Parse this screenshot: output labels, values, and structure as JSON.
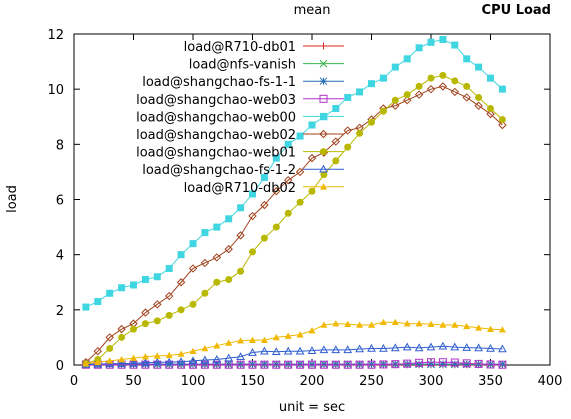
{
  "chart_data": {
    "type": "line",
    "title": "mean",
    "corner_title": "CPU Load",
    "xlabel": "unit = sec",
    "ylabel": "load",
    "xlim": [
      0,
      400
    ],
    "ylim": [
      0,
      12
    ],
    "xticks": [
      0,
      50,
      100,
      150,
      200,
      250,
      300,
      350,
      400
    ],
    "yticks": [
      0,
      2,
      4,
      6,
      8,
      10,
      12
    ],
    "grid": false,
    "legend_position": "top-left",
    "series": [
      {
        "name": "load@R710-db01",
        "color": "#d62a1e",
        "marker": "plus",
        "x": [
          10,
          20,
          30,
          40,
          50,
          60,
          70,
          80,
          90,
          100,
          110,
          120,
          130,
          140,
          150,
          160,
          170,
          180,
          190,
          200,
          210,
          220,
          230,
          240,
          250,
          260,
          270,
          280,
          290,
          300,
          310,
          320,
          330,
          340,
          350,
          360
        ],
        "values": [
          0.01,
          0.01,
          0.01,
          0.01,
          0.01,
          0.01,
          0.01,
          0.01,
          0.01,
          0.01,
          0.01,
          0.01,
          0.01,
          0.01,
          0.01,
          0.01,
          0.01,
          0.01,
          0.01,
          0.01,
          0.01,
          0.01,
          0.01,
          0.01,
          0.01,
          0.01,
          0.01,
          0.01,
          0.01,
          0.01,
          0.01,
          0.01,
          0.01,
          0.01,
          0.01,
          0.01
        ]
      },
      {
        "name": "load@nfs-vanish",
        "color": "#3cb44b",
        "marker": "cross",
        "x": [
          10,
          20,
          30,
          40,
          50,
          60,
          70,
          80,
          90,
          100,
          110,
          120,
          130,
          140,
          150,
          160,
          170,
          180,
          190,
          200,
          210,
          220,
          230,
          240,
          250,
          260,
          270,
          280,
          290,
          300,
          310,
          320,
          330,
          340,
          350,
          360
        ],
        "values": [
          0.02,
          0.02,
          0.02,
          0.02,
          0.02,
          0.02,
          0.02,
          0.02,
          0.02,
          0.02,
          0.02,
          0.02,
          0.02,
          0.02,
          0.02,
          0.02,
          0.02,
          0.02,
          0.02,
          0.02,
          0.02,
          0.02,
          0.02,
          0.02,
          0.02,
          0.02,
          0.02,
          0.02,
          0.02,
          0.02,
          0.02,
          0.02,
          0.02,
          0.02,
          0.02,
          0.02
        ]
      },
      {
        "name": "load@shangchao-fs-1-1",
        "color": "#2a6fb7",
        "marker": "star",
        "x": [
          10,
          20,
          30,
          40,
          50,
          60,
          70,
          80,
          90,
          100,
          110,
          120,
          130,
          140,
          150,
          160,
          170,
          180,
          190,
          200,
          210,
          220,
          230,
          240,
          250,
          260,
          270,
          280,
          290,
          300,
          310,
          320,
          330,
          340,
          350,
          360
        ],
        "values": [
          0.03,
          0.03,
          0.03,
          0.03,
          0.03,
          0.03,
          0.03,
          0.03,
          0.03,
          0.03,
          0.03,
          0.03,
          0.03,
          0.03,
          0.03,
          0.03,
          0.03,
          0.03,
          0.03,
          0.03,
          0.03,
          0.03,
          0.03,
          0.03,
          0.03,
          0.03,
          0.03,
          0.03,
          0.03,
          0.03,
          0.03,
          0.03,
          0.03,
          0.03,
          0.03,
          0.03
        ]
      },
      {
        "name": "load@shangchao-web03",
        "color": "#b030c8",
        "marker": "square",
        "x": [
          10,
          20,
          30,
          40,
          50,
          60,
          70,
          80,
          90,
          100,
          110,
          120,
          130,
          140,
          150,
          160,
          170,
          180,
          190,
          200,
          210,
          220,
          230,
          240,
          250,
          260,
          270,
          280,
          290,
          300,
          310,
          320,
          330,
          340,
          350,
          360
        ],
        "values": [
          0.01,
          0.01,
          0.01,
          0.01,
          0.01,
          0.01,
          0.01,
          0.01,
          0.01,
          0.01,
          0.01,
          0.01,
          0.01,
          0.01,
          0.01,
          0.01,
          0.01,
          0.01,
          0.01,
          0.01,
          0.01,
          0.01,
          0.01,
          0.01,
          0.01,
          0.02,
          0.03,
          0.05,
          0.08,
          0.1,
          0.1,
          0.09,
          0.06,
          0.04,
          0.02,
          0.01
        ]
      },
      {
        "name": "load@shangchao-web00",
        "color": "#3fd6e2",
        "marker": "filled-square",
        "x": [
          10,
          20,
          30,
          40,
          50,
          60,
          70,
          80,
          90,
          100,
          110,
          120,
          130,
          140,
          150,
          160,
          170,
          180,
          190,
          200,
          210,
          220,
          230,
          240,
          250,
          260,
          270,
          280,
          290,
          300,
          310,
          320,
          330,
          340,
          350,
          360
        ],
        "values": [
          2.1,
          2.3,
          2.6,
          2.8,
          2.9,
          3.1,
          3.2,
          3.5,
          4.0,
          4.4,
          4.8,
          5.0,
          5.3,
          5.7,
          6.2,
          6.8,
          7.5,
          8.0,
          8.3,
          8.7,
          9.0,
          9.3,
          9.7,
          9.9,
          10.2,
          10.4,
          10.8,
          11.1,
          11.5,
          11.7,
          11.8,
          11.6,
          11.1,
          10.8,
          10.4,
          10.0
        ]
      },
      {
        "name": "load@shangchao-web02",
        "color": "#a0401a",
        "marker": "open-diamond",
        "x": [
          10,
          20,
          30,
          40,
          50,
          60,
          70,
          80,
          90,
          100,
          110,
          120,
          130,
          140,
          150,
          160,
          170,
          180,
          190,
          200,
          210,
          220,
          230,
          240,
          250,
          260,
          270,
          280,
          290,
          300,
          310,
          320,
          330,
          340,
          350,
          360
        ],
        "values": [
          0.1,
          0.5,
          1.0,
          1.3,
          1.5,
          1.9,
          2.2,
          2.5,
          3.0,
          3.5,
          3.7,
          3.9,
          4.2,
          4.7,
          5.4,
          5.8,
          6.3,
          6.7,
          7.0,
          7.5,
          7.7,
          8.1,
          8.5,
          8.6,
          8.9,
          9.3,
          9.4,
          9.6,
          9.8,
          10.0,
          10.1,
          9.9,
          9.7,
          9.4,
          9.1,
          8.7
        ]
      },
      {
        "name": "load@shangchao-web01",
        "color": "#b8b800",
        "marker": "filled-circle",
        "x": [
          10,
          20,
          30,
          40,
          50,
          60,
          70,
          80,
          90,
          100,
          110,
          120,
          130,
          140,
          150,
          160,
          170,
          180,
          190,
          200,
          210,
          220,
          230,
          240,
          250,
          260,
          270,
          280,
          290,
          300,
          310,
          320,
          330,
          340,
          350,
          360
        ],
        "values": [
          0.05,
          0.2,
          0.6,
          1.0,
          1.3,
          1.5,
          1.6,
          1.8,
          2.0,
          2.2,
          2.6,
          3.0,
          3.1,
          3.4,
          4.1,
          4.6,
          5.0,
          5.5,
          5.9,
          6.3,
          6.9,
          7.4,
          7.9,
          8.4,
          8.8,
          9.2,
          9.6,
          9.8,
          10.1,
          10.4,
          10.5,
          10.3,
          10.1,
          9.7,
          9.3,
          8.9
        ]
      },
      {
        "name": "load@shangchao-fs-1-2",
        "color": "#2f5fd0",
        "marker": "open-triangle",
        "x": [
          10,
          20,
          30,
          40,
          50,
          60,
          70,
          80,
          90,
          100,
          110,
          120,
          130,
          140,
          150,
          160,
          170,
          180,
          190,
          200,
          210,
          220,
          230,
          240,
          250,
          260,
          270,
          280,
          290,
          300,
          310,
          320,
          330,
          340,
          350,
          360
        ],
        "values": [
          0.02,
          0.03,
          0.05,
          0.05,
          0.06,
          0.08,
          0.1,
          0.1,
          0.12,
          0.15,
          0.18,
          0.2,
          0.25,
          0.3,
          0.45,
          0.5,
          0.48,
          0.5,
          0.5,
          0.52,
          0.55,
          0.55,
          0.55,
          0.58,
          0.6,
          0.6,
          0.62,
          0.65,
          0.62,
          0.65,
          0.68,
          0.65,
          0.63,
          0.62,
          0.6,
          0.58
        ]
      },
      {
        "name": "load@R710-db02",
        "color": "#f0b800",
        "marker": "filled-triangle",
        "x": [
          10,
          20,
          30,
          40,
          50,
          60,
          70,
          80,
          90,
          100,
          110,
          120,
          130,
          140,
          150,
          160,
          170,
          180,
          190,
          200,
          210,
          220,
          230,
          240,
          250,
          260,
          270,
          280,
          290,
          300,
          310,
          320,
          330,
          340,
          350,
          360
        ],
        "values": [
          0.05,
          0.1,
          0.15,
          0.2,
          0.25,
          0.3,
          0.33,
          0.35,
          0.4,
          0.5,
          0.6,
          0.7,
          0.8,
          0.88,
          0.9,
          0.9,
          1.0,
          1.05,
          1.1,
          1.25,
          1.45,
          1.5,
          1.48,
          1.45,
          1.45,
          1.55,
          1.55,
          1.5,
          1.5,
          1.48,
          1.45,
          1.45,
          1.4,
          1.35,
          1.3,
          1.28
        ]
      }
    ]
  }
}
